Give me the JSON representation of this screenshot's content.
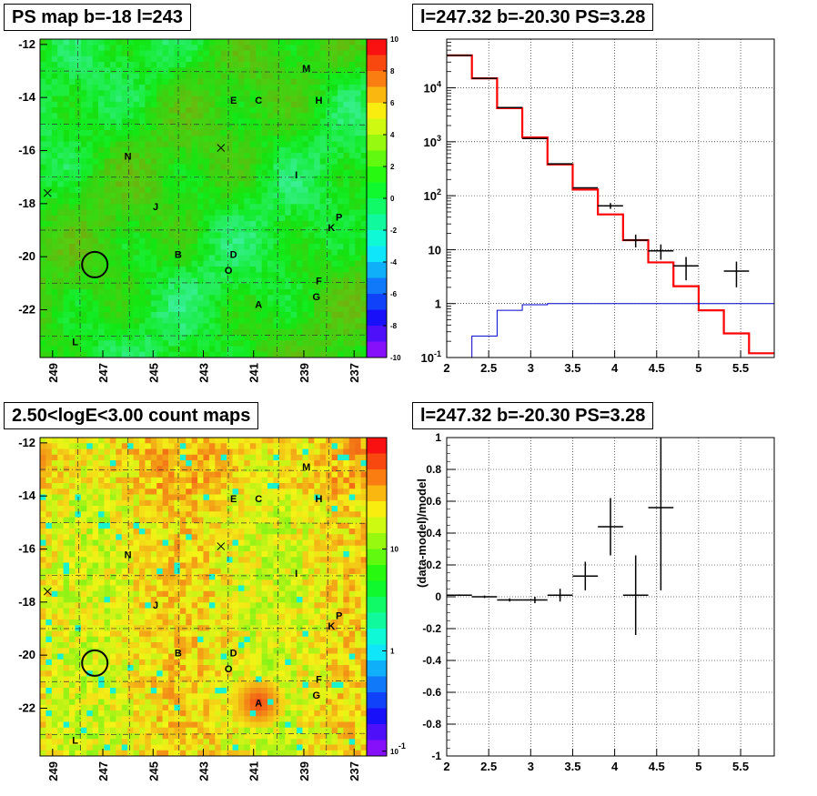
{
  "panel_titles": {
    "ps_map": "PS map b=-18 l=243",
    "spectrum": "l=247.32 b=-20.30 PS=3.28",
    "count_map": "2.50<logE<3.00 count maps",
    "residual": "l=247.32 b=-20.30 PS=3.28"
  },
  "sky_labels": [
    "M",
    "E",
    "C",
    "H",
    "N",
    "I",
    "J",
    "K",
    "P",
    "B",
    "D",
    "O",
    "F",
    "G",
    "A",
    "L"
  ],
  "colors": {
    "data": "#000000",
    "model": "#ff0000",
    "background": "#0000cc",
    "grid": "#000000"
  },
  "chart_data": [
    {
      "type": "heatmap",
      "title": "PS map b=-18 l=243",
      "x_ticks": [
        "249",
        "247",
        "245",
        "243",
        "241",
        "239",
        "237"
      ],
      "y_ticks": [
        "-12",
        "-14",
        "-16",
        "-18",
        "-20",
        "-22"
      ],
      "xlim": [
        249.5,
        236.5
      ],
      "ylim": [
        -23.8,
        -11.8
      ],
      "colorbar_ticks": [
        "10",
        "8",
        "6",
        "4",
        "2",
        "0",
        "-2",
        "-4",
        "-6",
        "-8",
        "-10"
      ],
      "colorbar_range": [
        -10,
        10
      ],
      "circle": {
        "l": 247.32,
        "b": -20.3
      },
      "crosses": [
        {
          "l": 249.2,
          "b": -17.6
        },
        {
          "l": 242.3,
          "b": -15.9
        }
      ],
      "source_labels": [
        {
          "text": "M",
          "l": 238.9,
          "b": -12.9
        },
        {
          "text": "E",
          "l": 241.8,
          "b": -14.1
        },
        {
          "text": "C",
          "l": 240.8,
          "b": -14.1
        },
        {
          "text": "H",
          "l": 238.4,
          "b": -14.1
        },
        {
          "text": "N",
          "l": 246.0,
          "b": -16.2
        },
        {
          "text": "I",
          "l": 239.3,
          "b": -16.9
        },
        {
          "text": "J",
          "l": 244.9,
          "b": -18.1
        },
        {
          "text": "K",
          "l": 237.9,
          "b": -18.9
        },
        {
          "text": "P",
          "l": 237.6,
          "b": -18.5
        },
        {
          "text": "B",
          "l": 244.0,
          "b": -19.9
        },
        {
          "text": "D",
          "l": 241.8,
          "b": -19.9
        },
        {
          "text": "O",
          "l": 242.0,
          "b": -20.5
        },
        {
          "text": "F",
          "l": 238.4,
          "b": -20.9
        },
        {
          "text": "G",
          "l": 238.5,
          "b": -21.5
        },
        {
          "text": "A",
          "l": 240.8,
          "b": -21.8
        },
        {
          "text": "L",
          "l": 248.1,
          "b": -23.2
        }
      ]
    },
    {
      "type": "line",
      "title": "l=247.32 b=-20.30 PS=3.28",
      "x_ticks": [
        "2",
        "2.5",
        "3",
        "3.5",
        "4",
        "4.5",
        "5",
        "5.5"
      ],
      "y_ticks": [
        "10^-1",
        "1",
        "10",
        "10^2",
        "10^3",
        "10^4"
      ],
      "xlim": [
        2.0,
        5.9
      ],
      "ylim": [
        0.1,
        80000
      ],
      "y_scale": "log",
      "grid": true,
      "series": [
        {
          "role": "model",
          "bin_edges": [
            2.0,
            2.3,
            2.6,
            2.9,
            3.2,
            3.5,
            3.8,
            4.1,
            4.4,
            4.7,
            5.0,
            5.3,
            5.6,
            5.9
          ],
          "values": [
            40000,
            15000,
            4200,
            1200,
            380,
            130,
            45,
            15,
            5.8,
            2.1,
            0.75,
            0.28,
            0.12
          ]
        },
        {
          "role": "background",
          "bin_edges": [
            2.0,
            2.3,
            2.6,
            2.9,
            3.2,
            3.5,
            5.9
          ],
          "values": [
            0.1,
            0.25,
            0.75,
            0.95,
            1.0,
            1.0
          ]
        },
        {
          "role": "data",
          "points": [
            {
              "x": 2.15,
              "y": 40000,
              "xerr": 0.15,
              "yerr": 0
            },
            {
              "x": 2.45,
              "y": 15000,
              "xerr": 0.15,
              "yerr": 0
            },
            {
              "x": 2.75,
              "y": 4300,
              "xerr": 0.15,
              "yerr": 0
            },
            {
              "x": 3.05,
              "y": 1150,
              "xerr": 0.15,
              "yerr": 0
            },
            {
              "x": 3.35,
              "y": 390,
              "xerr": 0.15,
              "yerr": 0
            },
            {
              "x": 3.65,
              "y": 140,
              "xerr": 0.15,
              "yerr": 0
            },
            {
              "x": 3.95,
              "y": 65,
              "xerr": 0.15,
              "yerr": 8
            },
            {
              "x": 4.25,
              "y": 15,
              "xerr": 0.15,
              "yerr": 4
            },
            {
              "x": 4.55,
              "y": 9.5,
              "xerr": 0.15,
              "yerr": 3
            },
            {
              "x": 4.85,
              "y": 5,
              "xerr": 0.15,
              "yerr": 2.3
            },
            {
              "x": 5.45,
              "y": 4,
              "xerr": 0.15,
              "yerr": 2
            }
          ]
        }
      ]
    },
    {
      "type": "heatmap",
      "title": "2.50<logE<3.00 count maps",
      "x_ticks": [
        "249",
        "247",
        "245",
        "243",
        "241",
        "239",
        "237"
      ],
      "y_ticks": [
        "-12",
        "-14",
        "-16",
        "-18",
        "-20",
        "-22"
      ],
      "xlim": [
        249.5,
        236.5
      ],
      "ylim": [
        -23.8,
        -11.8
      ],
      "colorbar_ticks": [
        "10",
        "1",
        "10^-1"
      ],
      "colorbar_scale": "log",
      "hot_spot": {
        "l": 240.8,
        "b": -21.8
      }
    },
    {
      "type": "scatter",
      "title": "l=247.32 b=-20.30 PS=3.28",
      "ylabel": "(data-model)/model",
      "x_ticks": [
        "2",
        "2.5",
        "3",
        "3.5",
        "4",
        "4.5",
        "5",
        "5.5"
      ],
      "y_ticks": [
        "1",
        "0.8",
        "0.6",
        "0.4",
        "0.2",
        "0",
        "-0.2",
        "-0.4",
        "-0.6",
        "-0.8",
        "-1"
      ],
      "xlim": [
        2.0,
        5.9
      ],
      "ylim": [
        -1,
        1
      ],
      "grid": true,
      "points": [
        {
          "x": 2.15,
          "y": 0.01,
          "xerr": 0.15,
          "yerr": 0.005
        },
        {
          "x": 2.45,
          "y": 0.0,
          "xerr": 0.15,
          "yerr": 0.008
        },
        {
          "x": 2.75,
          "y": -0.02,
          "xerr": 0.15,
          "yerr": 0.01
        },
        {
          "x": 3.05,
          "y": -0.02,
          "xerr": 0.15,
          "yerr": 0.02
        },
        {
          "x": 3.35,
          "y": 0.01,
          "xerr": 0.15,
          "yerr": 0.04
        },
        {
          "x": 3.65,
          "y": 0.13,
          "xerr": 0.15,
          "yerr": 0.09
        },
        {
          "x": 3.95,
          "y": 0.44,
          "xerr": 0.15,
          "yerr": 0.18
        },
        {
          "x": 4.25,
          "y": 0.01,
          "xerr": 0.15,
          "yerr": 0.25
        },
        {
          "x": 4.55,
          "y": 0.56,
          "xerr": 0.15,
          "yerr": 0.52
        }
      ]
    }
  ]
}
